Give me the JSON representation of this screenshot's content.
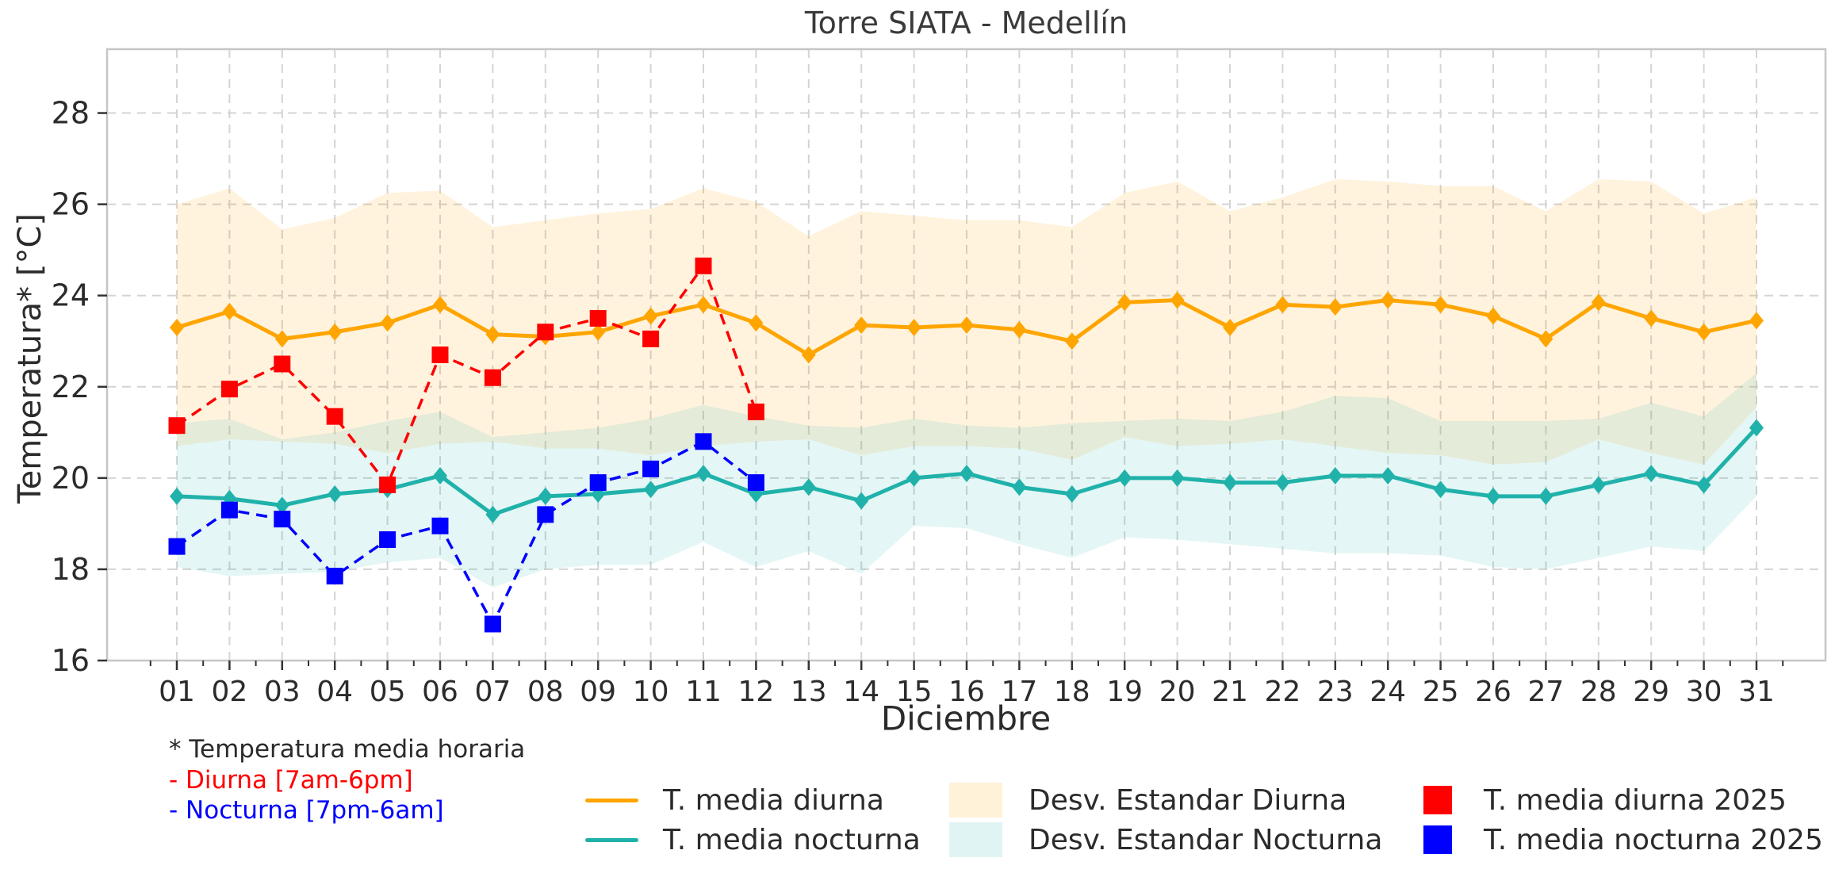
{
  "title": "Torre SIATA - Medellín",
  "axes": {
    "x_label": "Diciembre",
    "y_label": "Temperatura* [°C]",
    "y_ticks": [
      16,
      18,
      20,
      22,
      24,
      26,
      28
    ],
    "x_tick_labels": [
      "01",
      "02",
      "03",
      "04",
      "05",
      "06",
      "07",
      "08",
      "09",
      "10",
      "11",
      "12",
      "13",
      "14",
      "15",
      "16",
      "17",
      "18",
      "19",
      "20",
      "21",
      "22",
      "23",
      "24",
      "25",
      "26",
      "27",
      "28",
      "29",
      "30",
      "31"
    ]
  },
  "footnote": {
    "line1": "* Temperatura media horaria",
    "line2": "- Diurna [7am-6pm]",
    "line3": "- Nocturna [7pm-6am]"
  },
  "legend": {
    "items": [
      {
        "label": "T. media diurna",
        "swatch": "line",
        "color": "#FFA500"
      },
      {
        "label": "T. media nocturna",
        "swatch": "line",
        "color": "#20B2AA"
      },
      {
        "label": "Desv. Estandar Diurna",
        "swatch": "patch",
        "color": "rgba(255,165,0,0.15)"
      },
      {
        "label": "Desv. Estandar Nocturna",
        "swatch": "patch",
        "color": "rgba(32,178,170,0.14)"
      },
      {
        "label": "T. media diurna 2025",
        "swatch": "square",
        "color": "#FF0000"
      },
      {
        "label": "T. media nocturna 2025",
        "swatch": "square",
        "color": "#0000FF"
      }
    ]
  },
  "colors": {
    "diurna_line": "#FFA500",
    "nocturna_line": "#20B2AA",
    "diurna_2025": "#FF0000",
    "nocturna_2025": "#0000FF",
    "diurna_band": "rgba(255,165,0,0.13)",
    "nocturna_band": "rgba(32,178,170,0.12)",
    "grid": "#d4d4d4",
    "spine": "#c6c6c6",
    "tick": "#333333"
  },
  "chart_data": {
    "type": "line",
    "title": "Torre SIATA - Medellín",
    "xlabel": "Diciembre",
    "ylabel": "Temperatura* [°C]",
    "ylim": [
      16,
      29.4
    ],
    "grid": true,
    "x_days": [
      1,
      2,
      3,
      4,
      5,
      6,
      7,
      8,
      9,
      10,
      11,
      12,
      13,
      14,
      15,
      16,
      17,
      18,
      19,
      20,
      21,
      22,
      23,
      24,
      25,
      26,
      27,
      28,
      29,
      30,
      31
    ],
    "series": [
      {
        "name": "T. media diurna",
        "color": "#FFA500",
        "style": "solid",
        "marker": "diamond",
        "values": [
          23.3,
          23.65,
          23.05,
          23.2,
          23.4,
          23.8,
          23.15,
          23.1,
          23.2,
          23.55,
          23.8,
          23.4,
          22.7,
          23.35,
          23.3,
          23.35,
          23.25,
          23.0,
          23.85,
          23.9,
          23.3,
          23.8,
          23.75,
          23.9,
          23.8,
          23.55,
          23.05,
          23.85,
          23.5,
          23.2,
          23.45
        ]
      },
      {
        "name": "T. media nocturna",
        "color": "#20B2AA",
        "style": "solid",
        "marker": "diamond",
        "values": [
          19.6,
          19.55,
          19.4,
          19.65,
          19.75,
          20.05,
          19.2,
          19.6,
          19.65,
          19.75,
          20.1,
          19.65,
          19.8,
          19.5,
          20.0,
          20.1,
          19.8,
          19.65,
          20.0,
          20.0,
          19.9,
          19.9,
          20.05,
          20.05,
          19.75,
          19.6,
          19.6,
          19.85,
          20.1,
          19.85,
          21.1
        ]
      },
      {
        "name": "T. media diurna 2025",
        "color": "#FF0000",
        "style": "dashed",
        "marker": "square",
        "values": [
          21.15,
          21.95,
          22.5,
          21.35,
          19.85,
          22.7,
          22.2,
          23.2,
          23.5,
          23.05,
          24.65,
          21.45
        ]
      },
      {
        "name": "T. media nocturna 2025",
        "color": "#0000FF",
        "style": "dashed",
        "marker": "square",
        "values": [
          18.5,
          19.3,
          19.1,
          17.85,
          18.65,
          18.95,
          16.8,
          19.2,
          19.9,
          20.2,
          20.8,
          19.9
        ]
      }
    ],
    "bands": [
      {
        "name": "Desv. Estandar Diurna",
        "color": "rgba(255,165,0,0.13)",
        "upper": [
          26.0,
          26.35,
          25.45,
          25.7,
          26.25,
          26.3,
          25.5,
          25.65,
          25.8,
          25.9,
          26.35,
          26.05,
          25.3,
          25.85,
          25.75,
          25.65,
          25.65,
          25.5,
          26.25,
          26.5,
          25.85,
          26.15,
          26.55,
          26.5,
          26.4,
          26.4,
          25.85,
          26.55,
          26.5,
          25.8,
          26.15
        ],
        "lower": [
          20.7,
          20.85,
          20.8,
          20.75,
          20.55,
          20.75,
          20.8,
          20.65,
          20.65,
          20.5,
          20.7,
          20.8,
          20.85,
          20.5,
          20.7,
          20.7,
          20.65,
          20.4,
          20.9,
          20.7,
          20.75,
          20.85,
          20.7,
          20.55,
          20.5,
          20.3,
          20.35,
          20.85,
          20.55,
          20.3,
          21.55
        ]
      },
      {
        "name": "Desv. Estandar Nocturna",
        "color": "rgba(32,178,170,0.12)",
        "upper": [
          21.2,
          21.3,
          20.85,
          21.0,
          21.25,
          21.45,
          20.9,
          21.0,
          21.1,
          21.3,
          21.6,
          21.35,
          21.15,
          21.1,
          21.3,
          21.15,
          21.1,
          21.2,
          21.25,
          21.3,
          21.25,
          21.45,
          21.8,
          21.75,
          21.25,
          21.25,
          21.25,
          21.3,
          21.65,
          21.35,
          22.3
        ],
        "lower": [
          18.05,
          17.85,
          17.9,
          17.95,
          18.15,
          18.25,
          17.6,
          18.0,
          18.1,
          18.1,
          18.6,
          18.05,
          18.4,
          17.9,
          18.95,
          18.9,
          18.55,
          18.25,
          18.7,
          18.65,
          18.55,
          18.45,
          18.35,
          18.35,
          18.3,
          18.05,
          18.0,
          18.25,
          18.5,
          18.4,
          19.6
        ]
      }
    ]
  }
}
